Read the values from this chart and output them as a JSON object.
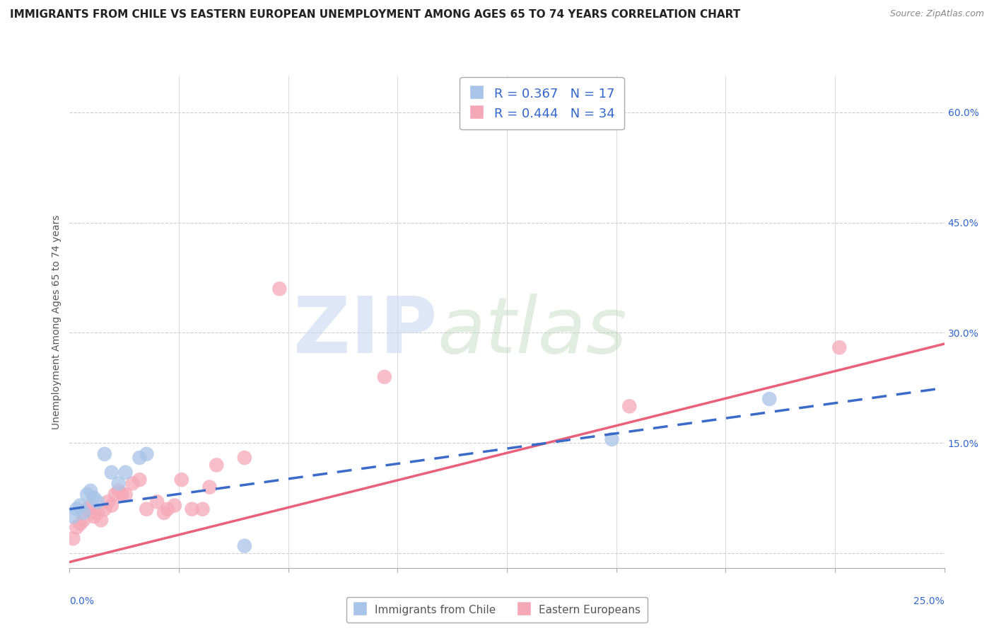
{
  "title": "IMMIGRANTS FROM CHILE VS EASTERN EUROPEAN UNEMPLOYMENT AMONG AGES 65 TO 74 YEARS CORRELATION CHART",
  "source": "Source: ZipAtlas.com",
  "ylabel": "Unemployment Among Ages 65 to 74 years",
  "xlim": [
    0.0,
    0.25
  ],
  "ylim": [
    -0.02,
    0.65
  ],
  "right_yticks": [
    0.0,
    0.15,
    0.3,
    0.45,
    0.6
  ],
  "right_yticklabels": [
    "",
    "15.0%",
    "30.0%",
    "45.0%",
    "60.0%"
  ],
  "watermark_zip": "ZIP",
  "watermark_atlas": "atlas",
  "legend1_label": "Immigrants from Chile",
  "legend2_label": "Eastern Europeans",
  "R_chile": 0.367,
  "N_chile": 17,
  "R_eastern": 0.444,
  "N_eastern": 34,
  "blue_color": "#a8c4e8",
  "pink_color": "#f5a8b8",
  "blue_line_color": "#3a6bc9",
  "pink_line_color": "#e8607a",
  "chile_x": [
    0.001,
    0.002,
    0.003,
    0.004,
    0.005,
    0.006,
    0.007,
    0.008,
    0.01,
    0.012,
    0.014,
    0.016,
    0.02,
    0.022,
    0.05,
    0.155,
    0.2
  ],
  "chile_y": [
    0.05,
    0.06,
    0.065,
    0.055,
    0.08,
    0.085,
    0.075,
    0.07,
    0.135,
    0.11,
    0.095,
    0.11,
    0.13,
    0.135,
    0.01,
    0.155,
    0.21
  ],
  "eastern_x": [
    0.001,
    0.002,
    0.003,
    0.004,
    0.005,
    0.006,
    0.006,
    0.007,
    0.008,
    0.009,
    0.01,
    0.011,
    0.012,
    0.013,
    0.014,
    0.015,
    0.016,
    0.018,
    0.02,
    0.022,
    0.025,
    0.027,
    0.028,
    0.03,
    0.032,
    0.035,
    0.038,
    0.04,
    0.042,
    0.05,
    0.06,
    0.09,
    0.16,
    0.22
  ],
  "eastern_y": [
    0.02,
    0.035,
    0.04,
    0.045,
    0.06,
    0.055,
    0.065,
    0.05,
    0.055,
    0.045,
    0.06,
    0.07,
    0.065,
    0.08,
    0.085,
    0.08,
    0.08,
    0.095,
    0.1,
    0.06,
    0.07,
    0.055,
    0.06,
    0.065,
    0.1,
    0.06,
    0.06,
    0.09,
    0.12,
    0.13,
    0.36,
    0.24,
    0.2,
    0.28
  ],
  "pink_line_x0": 0.0,
  "pink_line_y0": -0.012,
  "pink_line_x1": 0.25,
  "pink_line_y1": 0.285,
  "blue_line_x0": 0.0,
  "blue_line_y0": 0.06,
  "blue_line_x1": 0.25,
  "blue_line_y1": 0.225,
  "title_fontsize": 11,
  "source_fontsize": 9
}
